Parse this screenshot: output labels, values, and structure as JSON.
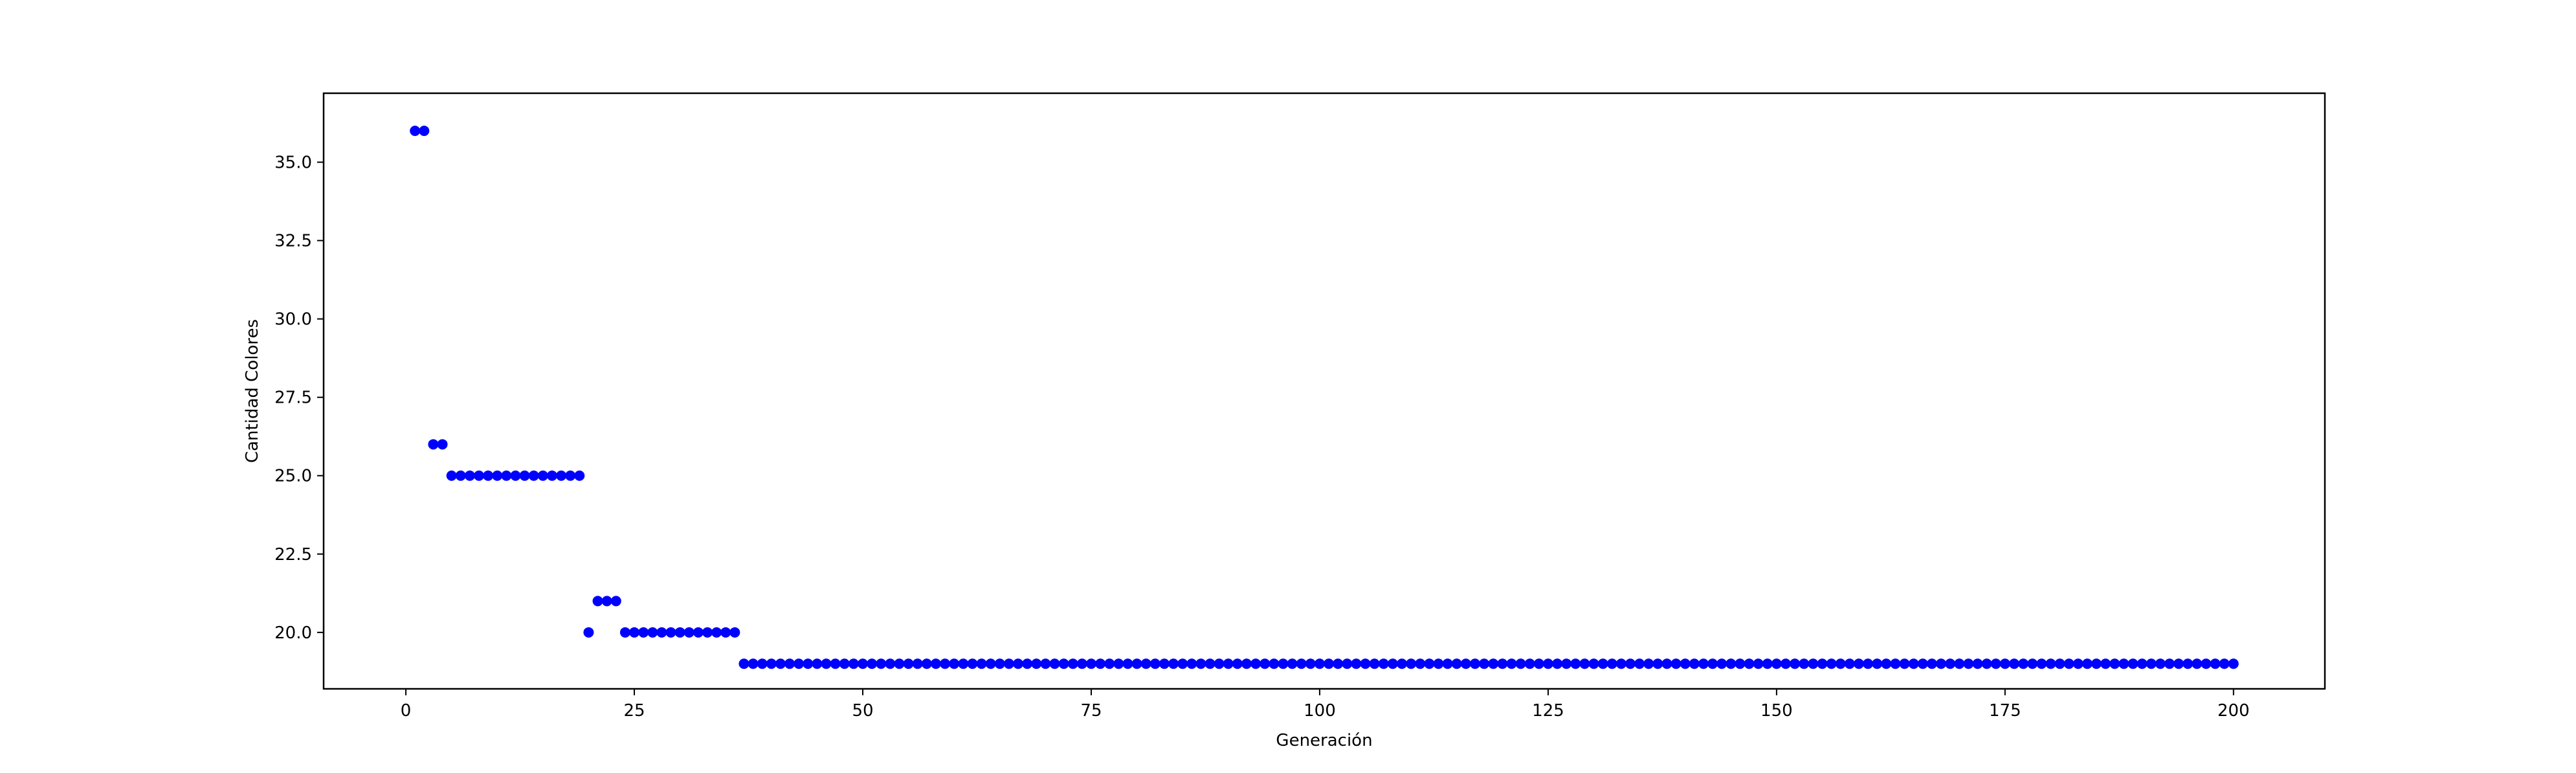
{
  "chart_data": {
    "type": "scatter",
    "title": "",
    "xlabel": "Generación",
    "ylabel": "Cantidad Colores",
    "xlim": [
      -9,
      210
    ],
    "ylim": [
      18.2,
      37.2
    ],
    "xticks": [
      0,
      25,
      50,
      75,
      100,
      125,
      150,
      175,
      200
    ],
    "yticks": [
      20.0,
      22.5,
      25.0,
      27.5,
      30.0,
      32.5,
      35.0
    ],
    "xtick_labels": [
      "0",
      "25",
      "50",
      "75",
      "100",
      "125",
      "150",
      "175",
      "200"
    ],
    "ytick_labels": [
      "20.0",
      "22.5",
      "25.0",
      "27.5",
      "30.0",
      "32.5",
      "35.0"
    ],
    "grid": false,
    "legend": "none",
    "marker_color": "#0000ff",
    "series": [
      {
        "name": "",
        "segments": [
          {
            "x_start": 1,
            "x_end": 2,
            "y": 36
          },
          {
            "x_start": 3,
            "x_end": 4,
            "y": 26
          },
          {
            "x_start": 5,
            "x_end": 19,
            "y": 25
          },
          {
            "x_start": 20,
            "x_end": 20,
            "y": 20
          },
          {
            "x_start": 21,
            "x_end": 23,
            "y": 21
          },
          {
            "x_start": 24,
            "x_end": 36,
            "y": 20
          },
          {
            "x_start": 37,
            "x_end": 200,
            "y": 19
          }
        ]
      }
    ]
  }
}
